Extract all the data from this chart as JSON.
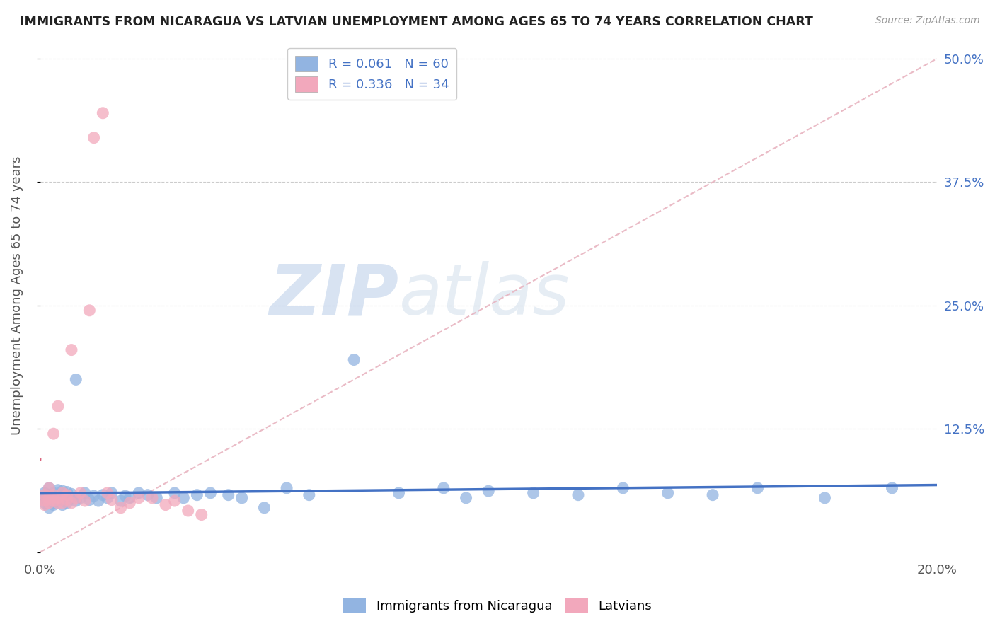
{
  "title": "IMMIGRANTS FROM NICARAGUA VS LATVIAN UNEMPLOYMENT AMONG AGES 65 TO 74 YEARS CORRELATION CHART",
  "source": "Source: ZipAtlas.com",
  "ylabel": "Unemployment Among Ages 65 to 74 years",
  "xlim": [
    0.0,
    0.2
  ],
  "ylim": [
    0.0,
    0.52
  ],
  "legend_R1": "R = 0.061",
  "legend_N1": "N = 60",
  "legend_R2": "R = 0.336",
  "legend_N2": "N = 34",
  "color_blue": "#92b4e1",
  "color_pink": "#f2a8bc",
  "color_blue_text": "#4472c4",
  "color_pink_text": "#d9607a",
  "watermark_zip": "ZIP",
  "watermark_atlas": "atlas",
  "blue_scatter_x": [
    0.001,
    0.001,
    0.001,
    0.002,
    0.002,
    0.002,
    0.003,
    0.003,
    0.003,
    0.003,
    0.004,
    0.004,
    0.004,
    0.005,
    0.005,
    0.005,
    0.005,
    0.006,
    0.006,
    0.006,
    0.007,
    0.007,
    0.008,
    0.008,
    0.009,
    0.01,
    0.011,
    0.012,
    0.013,
    0.014,
    0.015,
    0.016,
    0.018,
    0.019,
    0.02,
    0.022,
    0.024,
    0.026,
    0.03,
    0.032,
    0.035,
    0.038,
    0.042,
    0.045,
    0.05,
    0.055,
    0.06,
    0.07,
    0.08,
    0.09,
    0.095,
    0.1,
    0.11,
    0.12,
    0.13,
    0.14,
    0.15,
    0.16,
    0.175,
    0.19
  ],
  "blue_scatter_y": [
    0.05,
    0.055,
    0.06,
    0.045,
    0.058,
    0.065,
    0.05,
    0.055,
    0.048,
    0.06,
    0.052,
    0.057,
    0.063,
    0.048,
    0.053,
    0.058,
    0.062,
    0.05,
    0.056,
    0.061,
    0.054,
    0.059,
    0.052,
    0.175,
    0.055,
    0.06,
    0.053,
    0.057,
    0.052,
    0.058,
    0.055,
    0.06,
    0.052,
    0.057,
    0.055,
    0.06,
    0.058,
    0.055,
    0.06,
    0.055,
    0.058,
    0.06,
    0.058,
    0.055,
    0.045,
    0.065,
    0.058,
    0.195,
    0.06,
    0.065,
    0.055,
    0.062,
    0.06,
    0.058,
    0.065,
    0.06,
    0.058,
    0.065,
    0.055,
    0.065
  ],
  "pink_scatter_x": [
    0.001,
    0.001,
    0.001,
    0.002,
    0.002,
    0.002,
    0.003,
    0.003,
    0.003,
    0.004,
    0.004,
    0.004,
    0.005,
    0.005,
    0.006,
    0.006,
    0.007,
    0.007,
    0.008,
    0.009,
    0.01,
    0.011,
    0.012,
    0.014,
    0.015,
    0.016,
    0.018,
    0.02,
    0.022,
    0.025,
    0.028,
    0.03,
    0.033,
    0.036
  ],
  "pink_scatter_y": [
    0.048,
    0.052,
    0.058,
    0.05,
    0.055,
    0.065,
    0.052,
    0.058,
    0.12,
    0.05,
    0.055,
    0.148,
    0.06,
    0.05,
    0.053,
    0.058,
    0.205,
    0.05,
    0.055,
    0.06,
    0.052,
    0.245,
    0.42,
    0.445,
    0.06,
    0.053,
    0.045,
    0.05,
    0.055,
    0.055,
    0.048,
    0.052,
    0.042,
    0.038
  ],
  "grid_color": "#cccccc",
  "background_color": "#ffffff",
  "ref_line_color": "#e8b4c0"
}
